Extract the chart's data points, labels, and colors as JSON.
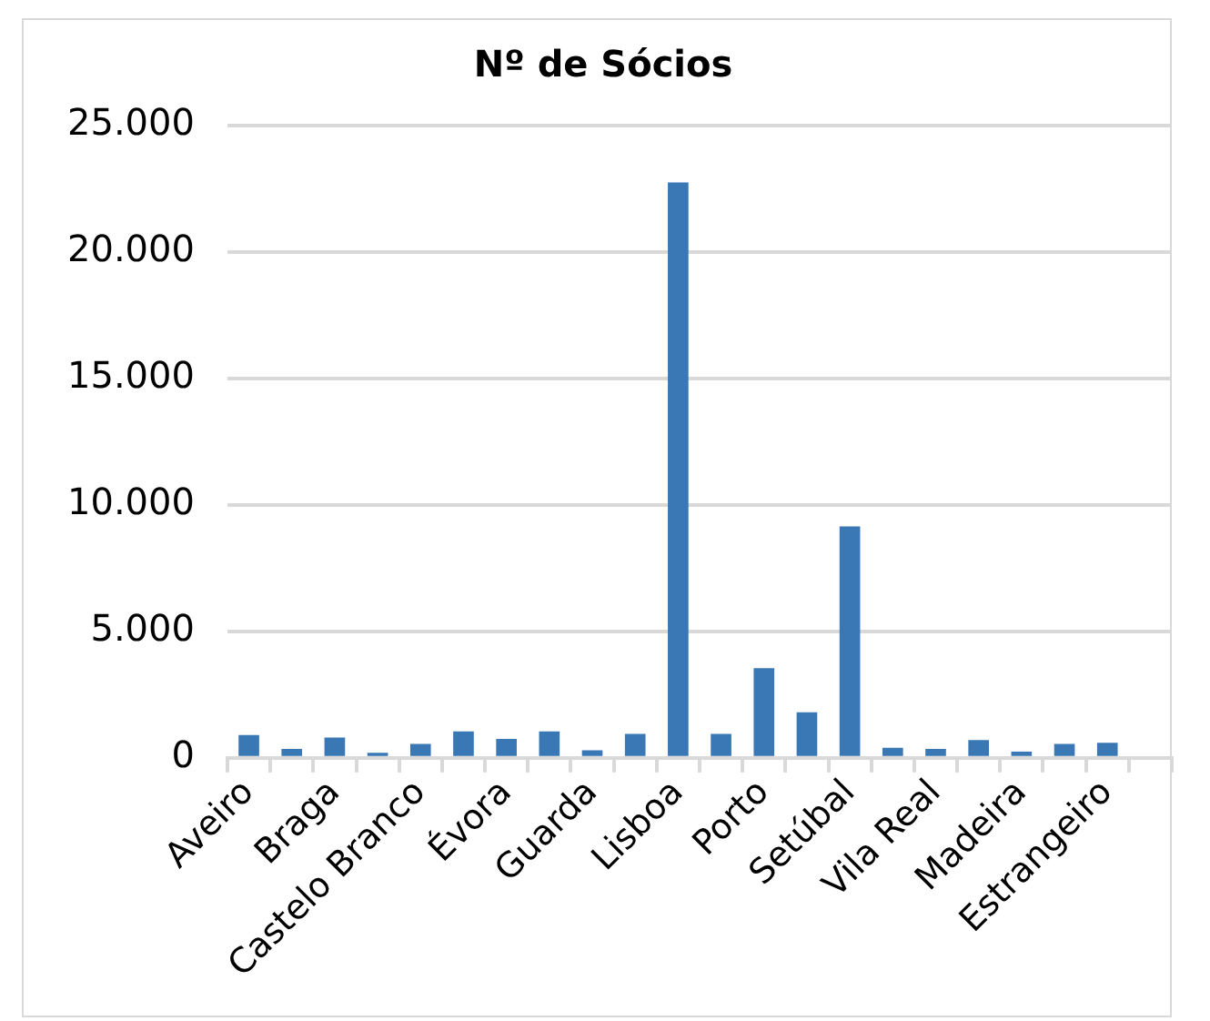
{
  "chart_data": {
    "type": "bar",
    "title": "Nº de Sócios",
    "categories": [
      "Aveiro",
      null,
      "Braga",
      null,
      "Castelo Branco",
      null,
      "Évora",
      null,
      "Guarda",
      null,
      "Lisboa",
      null,
      "Porto",
      null,
      "Setúbal",
      null,
      "Vila Real",
      null,
      "Madeira",
      null,
      "Estrangeiro",
      null
    ],
    "values": [
      900,
      350,
      800,
      200,
      550,
      1050,
      750,
      1050,
      300,
      950,
      22750,
      950,
      3550,
      1800,
      9150,
      400,
      350,
      700,
      250,
      550,
      600,
      null
    ],
    "color": "#3a78b5",
    "ylim": [
      0,
      25000
    ],
    "yticks": [
      {
        "value": 0,
        "label": "0"
      },
      {
        "value": 5000,
        "label": "5.000"
      },
      {
        "value": 10000,
        "label": "10.000"
      },
      {
        "value": 15000,
        "label": "15.000"
      },
      {
        "value": 20000,
        "label": "20.000"
      },
      {
        "value": 25000,
        "label": "25.000"
      }
    ],
    "grid": "y",
    "legend": false
  }
}
